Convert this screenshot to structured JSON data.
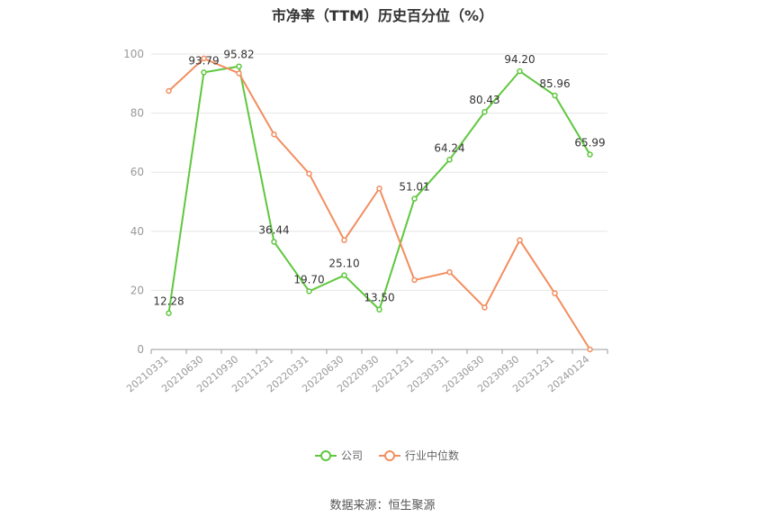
{
  "chart_data": {
    "type": "line",
    "title": "市净率（TTM）历史百分位（%）",
    "categories": [
      "20210331",
      "20210630",
      "20210930",
      "20211231",
      "20220331",
      "20220630",
      "20220930",
      "20221231",
      "20230331",
      "20230630",
      "20230930",
      "20231231",
      "20240124"
    ],
    "ylim": [
      0,
      100
    ],
    "yticks": [
      0,
      20,
      40,
      60,
      80,
      100
    ],
    "grid": true,
    "legend_position": "bottom",
    "series": [
      {
        "name": "公司",
        "color": "#5fc73e",
        "values": [
          12.28,
          93.79,
          95.82,
          36.44,
          19.7,
          25.1,
          13.5,
          51.01,
          64.24,
          80.43,
          94.2,
          85.96,
          65.99
        ],
        "labels": [
          "12.28",
          "93.79",
          "95.82",
          "36.44",
          "19.70",
          "25.10",
          "13.50",
          "51.01",
          "64.24",
          "80.43",
          "94.20",
          "85.96",
          "65.99"
        ]
      },
      {
        "name": "行业中位数",
        "color": "#f28e5f",
        "values": [
          87.5,
          98.5,
          93.5,
          72.8,
          59.5,
          37.0,
          54.5,
          23.5,
          26.2,
          14.2,
          37.0,
          19.0,
          0.0
        ]
      }
    ]
  },
  "source": "数据来源：恒生聚源"
}
